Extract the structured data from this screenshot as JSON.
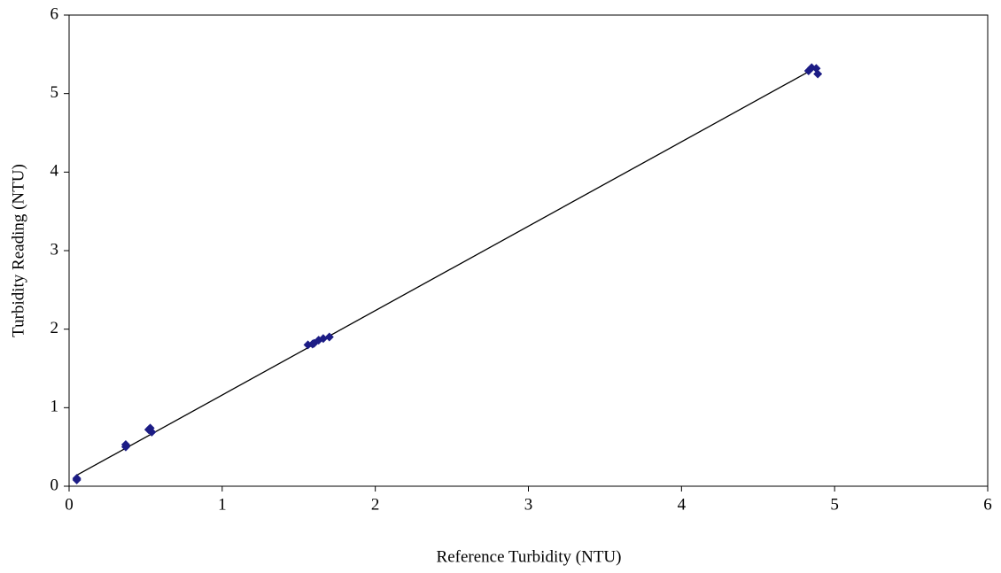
{
  "chart_data": {
    "type": "scatter",
    "xlabel": "Reference Turbidity (NTU)",
    "ylabel": "Turbidity Reading (NTU)",
    "xlim": [
      0,
      6
    ],
    "xticks": [
      0,
      1,
      2,
      3,
      4,
      5,
      6
    ],
    "ylim": [
      0,
      6
    ],
    "yticks": [
      0,
      1,
      2,
      3,
      4,
      5,
      6
    ],
    "series": [
      {
        "color": "#1c1c85",
        "x": [
          0.05,
          0.05,
          0.37,
          0.37,
          0.52,
          0.53,
          0.54,
          1.56,
          1.59,
          1.6,
          1.63,
          1.66,
          1.7,
          4.83,
          4.85,
          4.88,
          4.89
        ],
        "values": [
          0.08,
          0.1,
          0.5,
          0.53,
          0.72,
          0.74,
          0.69,
          1.8,
          1.81,
          1.82,
          1.86,
          1.88,
          1.9,
          5.29,
          5.33,
          5.32,
          5.25
        ]
      }
    ],
    "trendline": {
      "color": "#000000",
      "x": [
        0.05,
        4.85
      ],
      "values": [
        0.14,
        5.3
      ]
    }
  }
}
